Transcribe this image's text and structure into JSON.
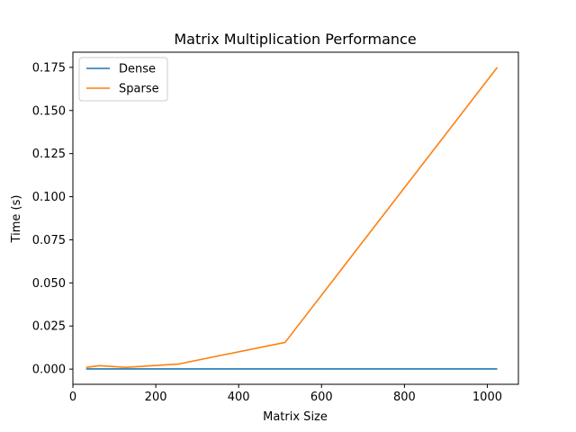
{
  "chart_data": {
    "type": "line",
    "title": "Matrix Multiplication Performance",
    "xlabel": "Matrix Size",
    "ylabel": "Time (s)",
    "xlim": [
      0,
      1075
    ],
    "ylim": [
      -0.0088,
      0.1838
    ],
    "x_ticks": [
      0,
      200,
      400,
      600,
      800,
      1000
    ],
    "x_tick_labels": [
      "0",
      "200",
      "400",
      "600",
      "800",
      "1000"
    ],
    "y_ticks": [
      0.0,
      0.025,
      0.05,
      0.075,
      0.1,
      0.125,
      0.15,
      0.175
    ],
    "y_tick_labels": [
      "0.000",
      "0.025",
      "0.050",
      "0.075",
      "0.100",
      "0.125",
      "0.150",
      "0.175"
    ],
    "grid": false,
    "legend_position": "top-left",
    "x": [
      32,
      64,
      128,
      256,
      512,
      1024
    ],
    "series": [
      {
        "name": "Dense",
        "color": "#1f77b4",
        "values": [
          0.0001,
          0.0001,
          0.0001,
          0.0001,
          0.0001,
          0.0001
        ]
      },
      {
        "name": "Sparse",
        "color": "#ff7f0e",
        "values": [
          0.001,
          0.002,
          0.001,
          0.003,
          0.0155,
          0.175
        ]
      }
    ]
  }
}
